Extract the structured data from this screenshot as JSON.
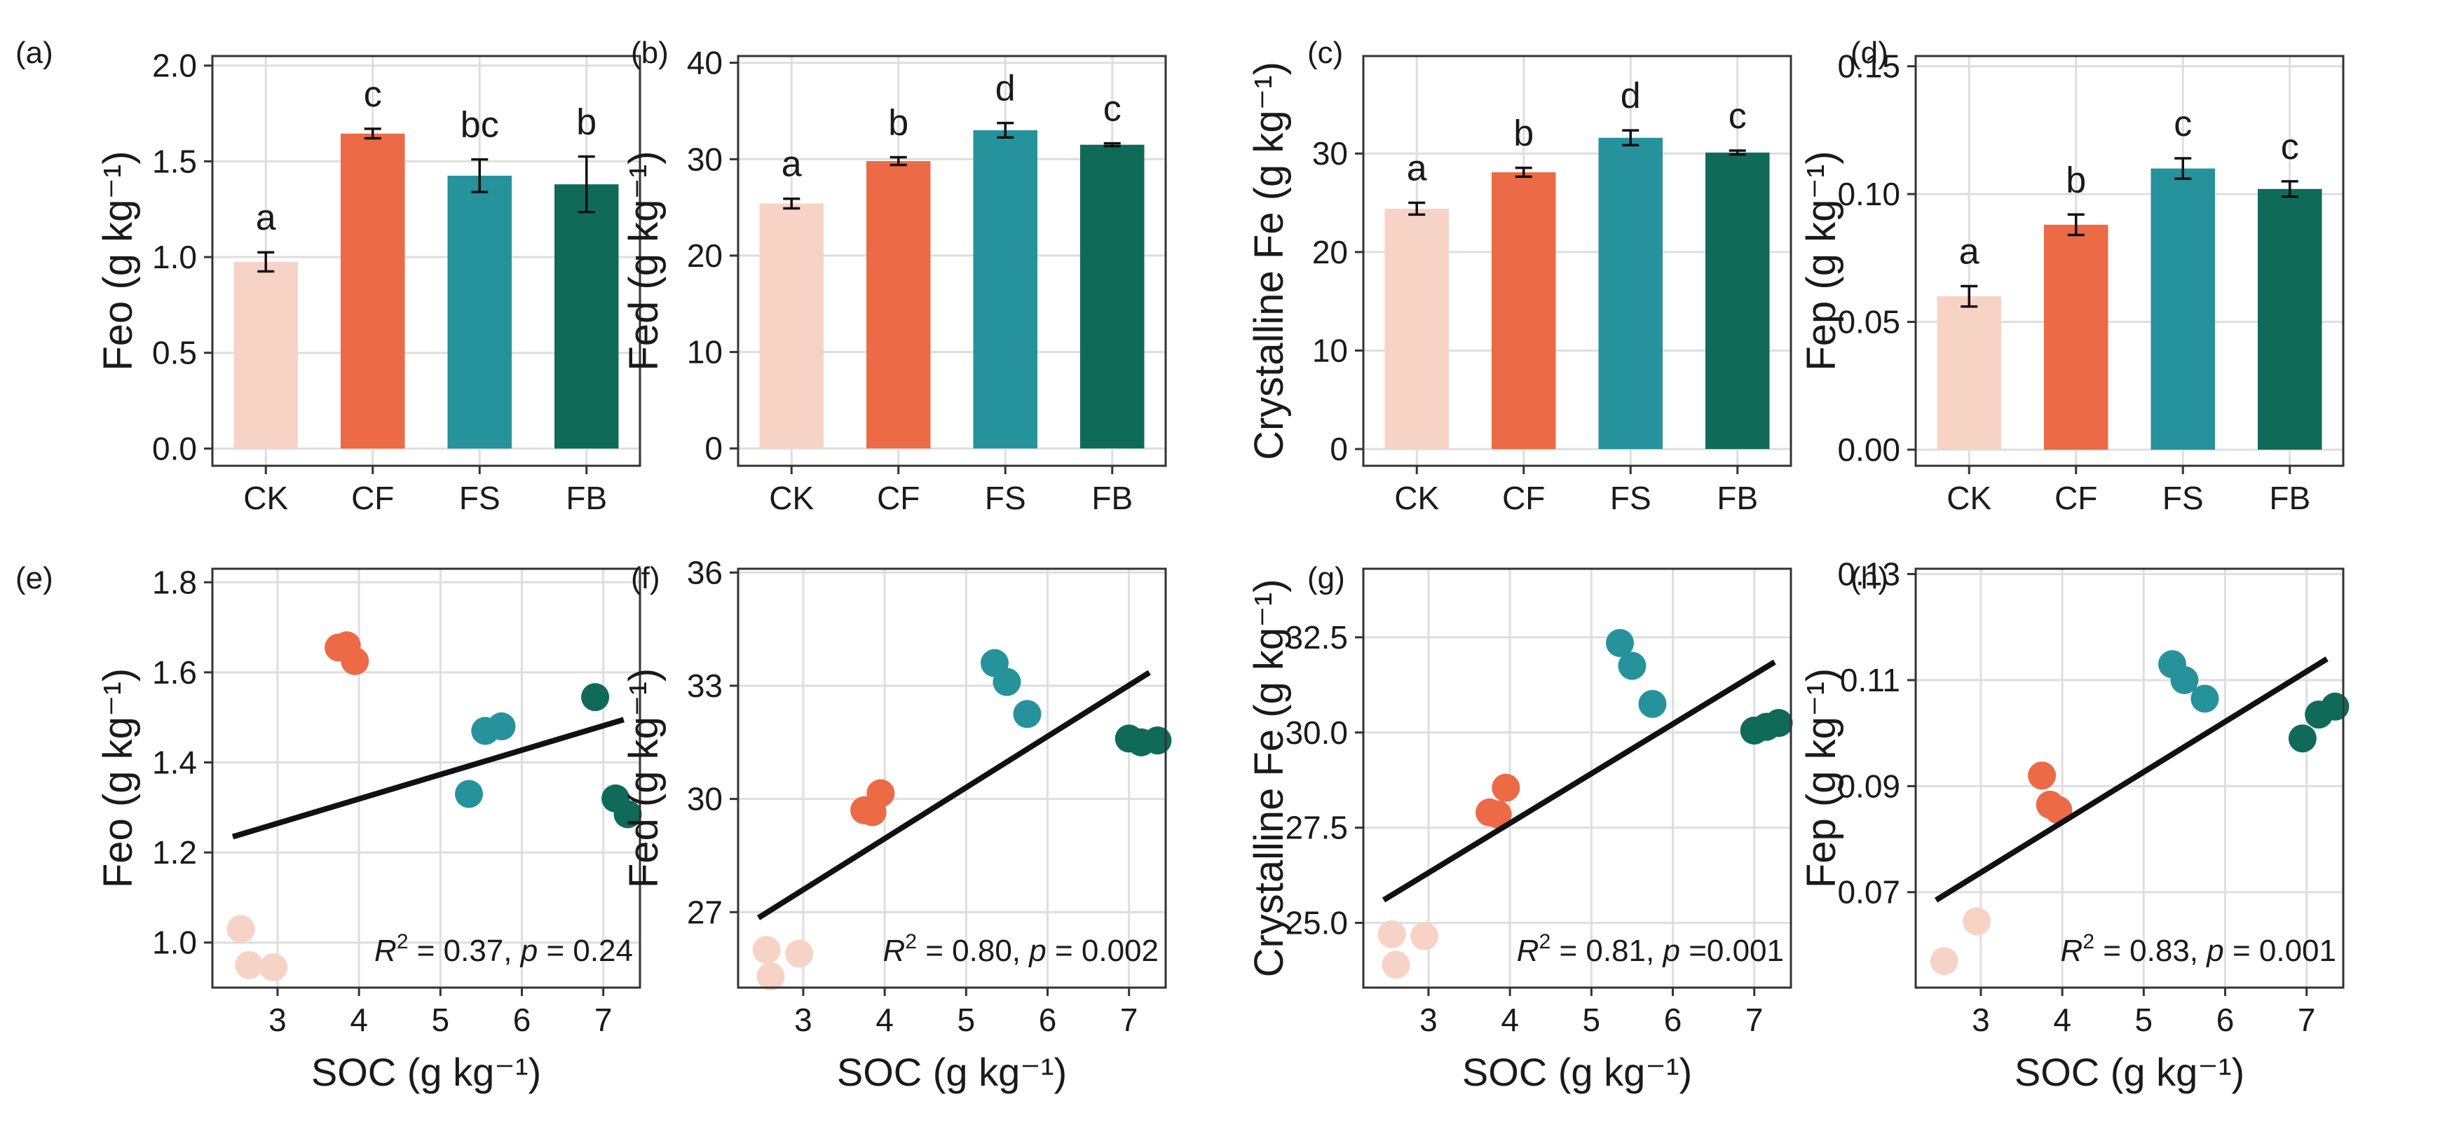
{
  "colors": {
    "CK": "#f7d3c6",
    "CF": "#ec6a46",
    "FS": "#26929b",
    "FB": "#0f6b58",
    "grid": "#dedede",
    "line": "#111111"
  },
  "chart_data": [
    {
      "type": "bar",
      "panel": "(a)",
      "ylabel": "Feo (g kg⁻¹)",
      "categories": [
        "CK",
        "CF",
        "FS",
        "FB"
      ],
      "values": [
        0.975,
        1.645,
        1.425,
        1.38
      ],
      "errors": [
        0.05,
        0.025,
        0.085,
        0.145
      ],
      "letters": [
        "a",
        "c",
        "bc",
        "b"
      ],
      "ylim": [
        -0.09,
        2.05
      ],
      "yticks": [
        0.0,
        0.5,
        1.0,
        1.5,
        2.0
      ],
      "ytick_labels": [
        "0.0",
        "0.5",
        "1.0",
        "1.5",
        "2.0"
      ]
    },
    {
      "type": "bar",
      "panel": "(b)",
      "ylabel": "Fed (g kg⁻¹)",
      "categories": [
        "CK",
        "CF",
        "FS",
        "FB"
      ],
      "values": [
        25.4,
        29.8,
        33.0,
        31.5
      ],
      "errors": [
        0.5,
        0.4,
        0.75,
        0.15
      ],
      "letters": [
        "a",
        "b",
        "d",
        "c"
      ],
      "ylim": [
        -1.8,
        40.7
      ],
      "yticks": [
        0,
        10,
        20,
        30,
        40
      ],
      "ytick_labels": [
        "0",
        "10",
        "20",
        "30",
        "40"
      ]
    },
    {
      "type": "bar",
      "panel": "(c)",
      "ylabel": "Crystalline Fe (g kg⁻¹)",
      "categories": [
        "CK",
        "CF",
        "FS",
        "FB"
      ],
      "values": [
        24.4,
        28.1,
        31.6,
        30.1
      ],
      "errors": [
        0.6,
        0.45,
        0.75,
        0.2
      ],
      "letters": [
        "a",
        "b",
        "d",
        "c"
      ],
      "ylim": [
        -1.7,
        39.9
      ],
      "yticks": [
        0,
        10,
        20,
        30
      ],
      "ytick_labels": [
        "0",
        "10",
        "20",
        "30"
      ]
    },
    {
      "type": "bar",
      "panel": "(d)",
      "ylabel": "Fep (g kg⁻¹)",
      "categories": [
        "CK",
        "CF",
        "FS",
        "FB"
      ],
      "values": [
        0.06,
        0.088,
        0.11,
        0.102
      ],
      "errors": [
        0.004,
        0.004,
        0.004,
        0.003
      ],
      "letters": [
        "a",
        "b",
        "c",
        "c"
      ],
      "ylim": [
        -0.0063,
        0.154
      ],
      "yticks": [
        0.0,
        0.05,
        0.1,
        0.15
      ],
      "ytick_labels": [
        "0.00",
        "0.05",
        "0.10",
        "0.15"
      ]
    },
    {
      "type": "scatter",
      "panel": "(e)",
      "ylabel": "Feo (g kg⁻¹)",
      "xlabel": "SOC (g kg⁻¹)",
      "xlim": [
        2.2,
        7.45
      ],
      "ylim": [
        0.9,
        1.83
      ],
      "xticks": [
        3,
        4,
        5,
        6,
        7
      ],
      "xtick_labels": [
        "3",
        "4",
        "5",
        "6",
        "7"
      ],
      "yticks": [
        1.0,
        1.2,
        1.4,
        1.6,
        1.8
      ],
      "ytick_labels": [
        "1.0",
        "1.2",
        "1.4",
        "1.6",
        "1.8"
      ],
      "series": [
        {
          "name": "CK",
          "points": [
            [
              2.55,
              1.03
            ],
            [
              2.65,
              0.95
            ],
            [
              2.95,
              0.945
            ]
          ]
        },
        {
          "name": "CF",
          "points": [
            [
              3.75,
              1.655
            ],
            [
              3.85,
              1.66
            ],
            [
              3.95,
              1.625
            ]
          ]
        },
        {
          "name": "FS",
          "points": [
            [
              5.35,
              1.33
            ],
            [
              5.55,
              1.47
            ],
            [
              5.75,
              1.48
            ]
          ]
        },
        {
          "name": "FB",
          "points": [
            [
              6.9,
              1.545
            ],
            [
              7.15,
              1.32
            ],
            [
              7.3,
              1.285
            ]
          ]
        }
      ],
      "fit": [
        [
          2.45,
          1.235
        ],
        [
          7.25,
          1.495
        ]
      ],
      "stat": {
        "prefix": "R",
        "sup": "2",
        "r2": " = 0.37, ",
        "p": "p",
        "pval": " = 0.24"
      }
    },
    {
      "type": "scatter",
      "panel": "(f)",
      "ylabel": "Fed (g kg⁻¹)",
      "xlabel": "SOC (g kg⁻¹)",
      "xlim": [
        2.2,
        7.45
      ],
      "ylim": [
        25.0,
        36.1
      ],
      "xticks": [
        3,
        4,
        5,
        6,
        7
      ],
      "xtick_labels": [
        "3",
        "4",
        "5",
        "6",
        "7"
      ],
      "yticks": [
        27,
        30,
        33,
        36
      ],
      "ytick_labels": [
        "27",
        "30",
        "33",
        "36"
      ],
      "series": [
        {
          "name": "CK",
          "points": [
            [
              2.55,
              26.0
            ],
            [
              2.6,
              25.3
            ],
            [
              2.95,
              25.9
            ]
          ]
        },
        {
          "name": "CF",
          "points": [
            [
              3.75,
              29.7
            ],
            [
              3.85,
              29.65
            ],
            [
              3.95,
              30.15
            ]
          ]
        },
        {
          "name": "FS",
          "points": [
            [
              5.35,
              33.6
            ],
            [
              5.5,
              33.1
            ],
            [
              5.75,
              32.25
            ]
          ]
        },
        {
          "name": "FB",
          "points": [
            [
              7.0,
              31.6
            ],
            [
              7.15,
              31.5
            ],
            [
              7.35,
              31.55
            ]
          ]
        }
      ],
      "fit": [
        [
          2.45,
          26.85
        ],
        [
          7.25,
          33.35
        ]
      ],
      "stat": {
        "prefix": "R",
        "sup": "2",
        "r2": " = 0.80, ",
        "p": "p",
        "pval": " = 0.002"
      }
    },
    {
      "type": "scatter",
      "panel": "(g)",
      "ylabel": "Crystalline Fe (g kg⁻¹)",
      "xlabel": "SOC (g kg⁻¹)",
      "xlim": [
        2.2,
        7.45
      ],
      "ylim": [
        23.3,
        34.3
      ],
      "xticks": [
        3,
        4,
        5,
        6,
        7
      ],
      "xtick_labels": [
        "3",
        "4",
        "5",
        "6",
        "7"
      ],
      "yticks": [
        25.0,
        27.5,
        30.0,
        32.5
      ],
      "ytick_labels": [
        "25.0",
        "27.5",
        "30.0",
        "32.5"
      ],
      "series": [
        {
          "name": "CK",
          "points": [
            [
              2.55,
              24.7
            ],
            [
              2.6,
              23.9
            ],
            [
              2.95,
              24.65
            ]
          ]
        },
        {
          "name": "CF",
          "points": [
            [
              3.75,
              27.9
            ],
            [
              3.85,
              27.85
            ],
            [
              3.95,
              28.55
            ]
          ]
        },
        {
          "name": "FS",
          "points": [
            [
              5.35,
              32.35
            ],
            [
              5.5,
              31.75
            ],
            [
              5.75,
              30.75
            ]
          ]
        },
        {
          "name": "FB",
          "points": [
            [
              7.0,
              30.05
            ],
            [
              7.15,
              30.15
            ],
            [
              7.3,
              30.25
            ]
          ]
        }
      ],
      "fit": [
        [
          2.45,
          25.6
        ],
        [
          7.25,
          31.85
        ]
      ],
      "stat": {
        "prefix": "R",
        "sup": "2",
        "r2": " = 0.81, ",
        "p": "p",
        "pval": " =0.001"
      }
    },
    {
      "type": "scatter",
      "panel": "(h)",
      "ylabel": "Fep (g kg⁻¹)",
      "xlabel": "SOC (g kg⁻¹)",
      "xlim": [
        2.2,
        7.45
      ],
      "ylim": [
        0.052,
        0.131
      ],
      "xticks": [
        3,
        4,
        5,
        6,
        7
      ],
      "xtick_labels": [
        "3",
        "4",
        "5",
        "6",
        "7"
      ],
      "yticks": [
        0.07,
        0.09,
        0.11,
        0.13
      ],
      "ytick_labels": [
        "0.07",
        "0.09",
        "0.11",
        "0.13"
      ],
      "series": [
        {
          "name": "CK",
          "points": [
            [
              2.55,
              0.057
            ],
            [
              2.95,
              0.0645
            ]
          ]
        },
        {
          "name": "CF",
          "points": [
            [
              3.75,
              0.092
            ],
            [
              3.85,
              0.0865
            ],
            [
              3.95,
              0.0855
            ]
          ]
        },
        {
          "name": "FS",
          "points": [
            [
              5.35,
              0.113
            ],
            [
              5.5,
              0.11
            ],
            [
              5.75,
              0.1065
            ]
          ]
        },
        {
          "name": "FB",
          "points": [
            [
              6.95,
              0.099
            ],
            [
              7.15,
              0.1035
            ],
            [
              7.35,
              0.105
            ]
          ]
        }
      ],
      "fit": [
        [
          2.45,
          0.0685
        ],
        [
          7.25,
          0.114
        ]
      ],
      "stat": {
        "prefix": "R",
        "sup": "2",
        "r2": " = 0.83, ",
        "p": "p",
        "pval": " = 0.001"
      }
    }
  ]
}
